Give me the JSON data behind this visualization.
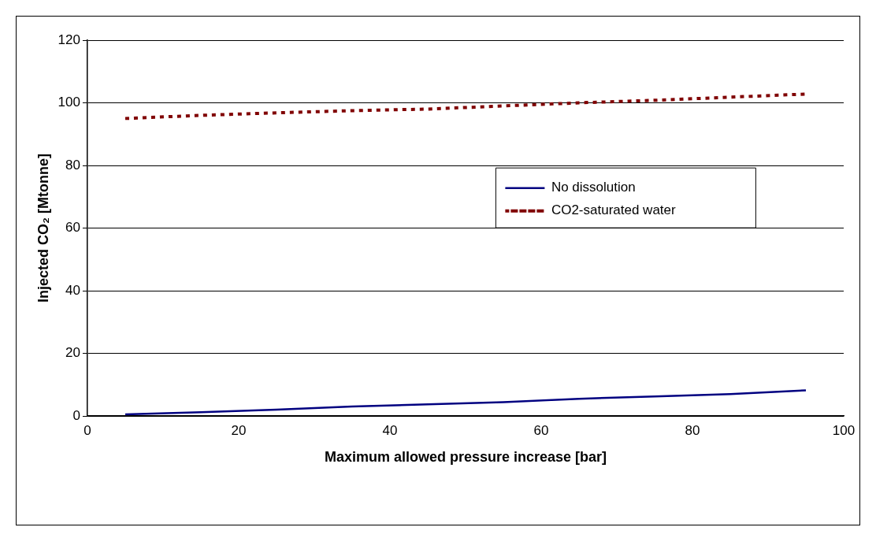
{
  "chart_data": {
    "type": "line",
    "xlabel": "Maximum allowed pressure increase [bar]",
    "ylabel": "Injected CO₂ [Mtonne]",
    "x": [
      5,
      15,
      25,
      35,
      45,
      55,
      65,
      75,
      85,
      95
    ],
    "series": [
      {
        "name": "No dissolution",
        "color": "#000080",
        "line_style": "solid",
        "values": [
          0.5,
          1.2,
          2,
          3,
          3.7,
          4.4,
          5.5,
          6.2,
          7,
          8.2
        ]
      },
      {
        "name": "CO2-saturated water",
        "color": "#800000",
        "line_style": "dotted",
        "values": [
          95,
          96,
          96.8,
          97.5,
          98,
          99,
          100,
          100.8,
          101.8,
          102.8
        ]
      }
    ],
    "xlim": [
      0,
      100
    ],
    "xticks": [
      0,
      20,
      40,
      60,
      80,
      100
    ],
    "ylim": [
      0,
      120
    ],
    "yticks": [
      0,
      20,
      40,
      60,
      80,
      100,
      120
    ],
    "grid": "y",
    "legend": "right",
    "marker": "none"
  }
}
